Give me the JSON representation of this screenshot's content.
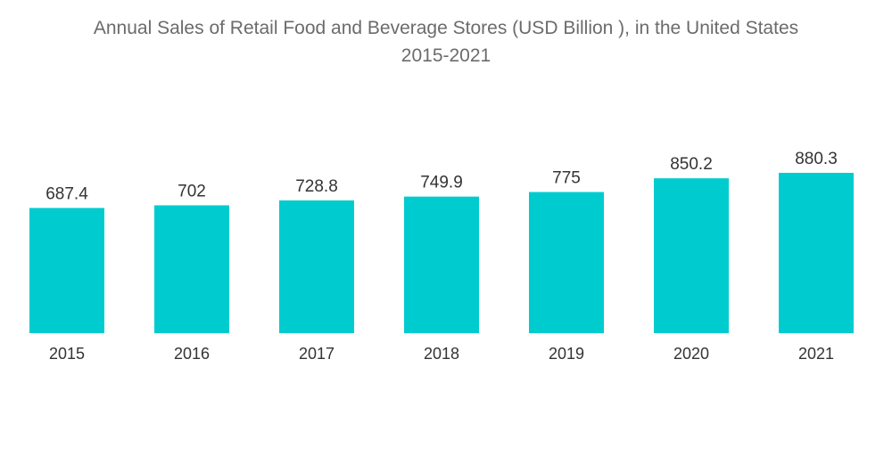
{
  "chart_data": {
    "type": "bar",
    "title": "Annual Sales of Retail Food and Beverage Stores (USD Billion ), in the United States",
    "subtitle": "2015-2021",
    "xlabel": "",
    "ylabel": "",
    "categories": [
      "2015",
      "2016",
      "2017",
      "2018",
      "2019",
      "2020",
      "2021"
    ],
    "values": [
      687.4,
      702,
      728.8,
      749.9,
      775,
      850.2,
      880.3
    ],
    "value_labels": [
      "687.4",
      "702",
      "728.8",
      "749.9",
      "775",
      "850.2",
      "880.3"
    ],
    "ylim": [
      0,
      880.3
    ],
    "grid": false,
    "legend": "none",
    "bar_color": "#00cccf"
  }
}
